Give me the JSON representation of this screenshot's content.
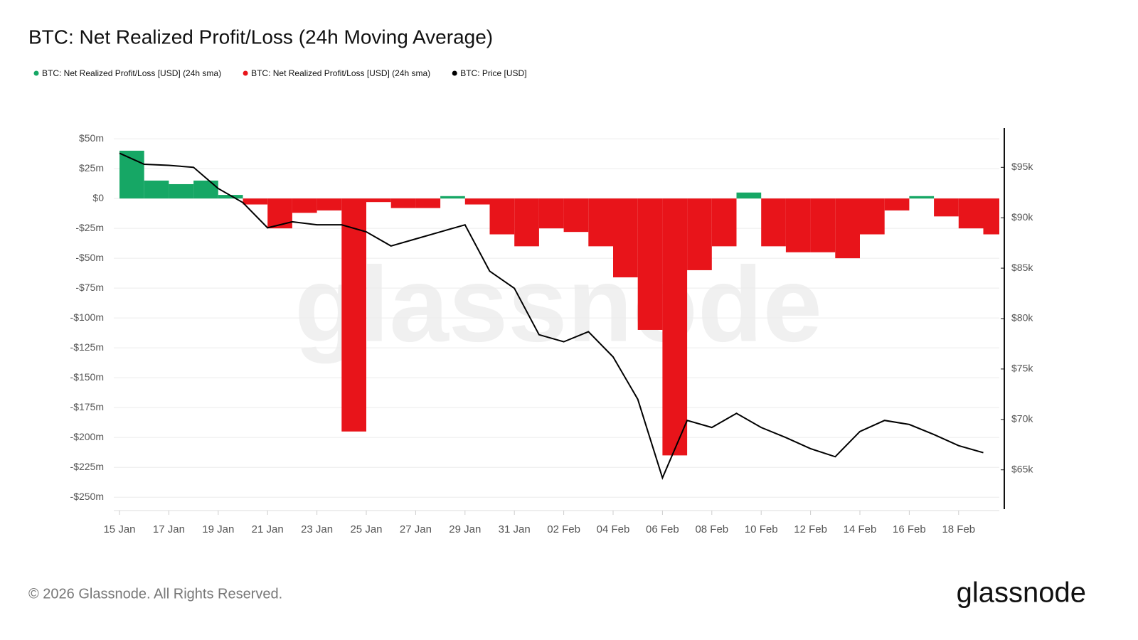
{
  "chart_data": {
    "type": "bar_line",
    "title": "BTC: Net Realized Profit/Loss (24h Moving Average)",
    "watermark": "glassnode",
    "footer": "© 2026 Glassnode. All Rights Reserved.",
    "logo": "glassnode",
    "x": [
      "15 Jan",
      "16 Jan",
      "17 Jan",
      "18 Jan",
      "19 Jan",
      "20 Jan",
      "21 Jan",
      "22 Jan",
      "23 Jan",
      "24 Jan",
      "25 Jan",
      "26 Jan",
      "27 Jan",
      "28 Jan",
      "29 Jan",
      "30 Jan",
      "31 Jan",
      "01 Feb",
      "02 Feb",
      "03 Feb",
      "04 Feb",
      "05 Feb",
      "06 Feb",
      "07 Feb",
      "08 Feb",
      "09 Feb",
      "10 Feb",
      "11 Feb",
      "12 Feb",
      "13 Feb",
      "14 Feb",
      "15 Feb",
      "16 Feb",
      "17 Feb",
      "18 Feb",
      "19 Feb"
    ],
    "xticks": [
      "15 Jan",
      "17 Jan",
      "19 Jan",
      "21 Jan",
      "23 Jan",
      "25 Jan",
      "27 Jan",
      "29 Jan",
      "31 Jan",
      "02 Feb",
      "04 Feb",
      "06 Feb",
      "08 Feb",
      "10 Feb",
      "12 Feb",
      "14 Feb",
      "16 Feb",
      "18 Feb"
    ],
    "series": [
      {
        "name": "BTC: Net Realized Profit/Loss [USD] (24h sma)",
        "color": "#16a765",
        "values": [
          40,
          15,
          12,
          15,
          3,
          null,
          null,
          null,
          null,
          null,
          null,
          null,
          null,
          2,
          null,
          null,
          null,
          null,
          null,
          null,
          null,
          null,
          null,
          null,
          null,
          5,
          null,
          null,
          null,
          null,
          null,
          null,
          2,
          null,
          null,
          null
        ]
      },
      {
        "name": "BTC: Net Realized Profit/Loss [USD] (24h sma)",
        "color": "#e8141a",
        "values": [
          null,
          null,
          null,
          null,
          null,
          -5,
          -25,
          -12,
          -10,
          -195,
          -3,
          -8,
          -8,
          null,
          -5,
          -30,
          -40,
          -25,
          -28,
          -40,
          -66,
          -110,
          -215,
          -60,
          -40,
          null,
          -40,
          -45,
          -45,
          -50,
          -30,
          -10,
          null,
          -15,
          -25,
          -30
        ]
      },
      {
        "name": "BTC: Price [USD]",
        "color": "#000000",
        "axis": "y2",
        "values": [
          96.4,
          95.3,
          95.2,
          95.0,
          92.9,
          91.5,
          89.0,
          89.6,
          89.3,
          89.3,
          88.6,
          87.2,
          87.9,
          88.6,
          89.3,
          84.7,
          83.0,
          78.4,
          77.7,
          78.7,
          76.2,
          72.0,
          64.2,
          69.9,
          69.2,
          70.6,
          69.2,
          68.2,
          67.1,
          66.3,
          68.8,
          69.9,
          69.5,
          68.5,
          67.4,
          66.7
        ]
      }
    ],
    "ylim": [
      -260,
      59
    ],
    "yticks": [
      {
        "value": 50,
        "label": "$50m"
      },
      {
        "value": 25,
        "label": "$25m"
      },
      {
        "value": 0,
        "label": "$0"
      },
      {
        "value": -25,
        "label": "-$25m"
      },
      {
        "value": -50,
        "label": "-$50m"
      },
      {
        "value": -75,
        "label": "-$75m"
      },
      {
        "value": -100,
        "label": "-$100m"
      },
      {
        "value": -125,
        "label": "-$125m"
      },
      {
        "value": -150,
        "label": "-$150m"
      },
      {
        "value": -175,
        "label": "-$175m"
      },
      {
        "value": -200,
        "label": "-$200m"
      },
      {
        "value": -225,
        "label": "-$225m"
      },
      {
        "value": -250,
        "label": "-$250m"
      }
    ],
    "y2lim": [
      61.1,
      98.9
    ],
    "y2ticks": [
      {
        "value": 95,
        "label": "$95k"
      },
      {
        "value": 90,
        "label": "$90k"
      },
      {
        "value": 85,
        "label": "$85k"
      },
      {
        "value": 80,
        "label": "$80k"
      },
      {
        "value": 75,
        "label": "$75k"
      },
      {
        "value": 70,
        "label": "$70k"
      },
      {
        "value": 65,
        "label": "$65k"
      }
    ],
    "grid": true
  }
}
